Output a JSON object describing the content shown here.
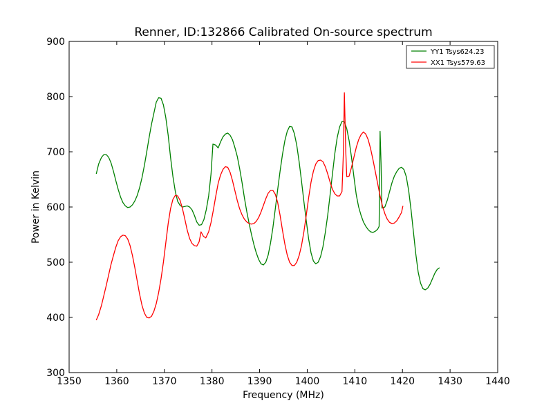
{
  "chart_data": {
    "type": "line",
    "title": "Renner, ID:132866 Calibrated On-source spectrum",
    "xlabel": "Frequency (MHz)",
    "ylabel": "Power in Kelvin",
    "xlim": [
      1350,
      1440
    ],
    "ylim": [
      300,
      900
    ],
    "xticks": [
      1350,
      1360,
      1370,
      1380,
      1390,
      1400,
      1410,
      1420,
      1430,
      1440
    ],
    "yticks": [
      300,
      400,
      500,
      600,
      700,
      800,
      900
    ],
    "grid": false,
    "legend_position": "top-right",
    "series": [
      {
        "name": "YY1 Tsys624.23",
        "color": "#008000",
        "points": [
          [
            1355.7,
            660
          ],
          [
            1356.2,
            678
          ],
          [
            1356.8,
            690
          ],
          [
            1357.3,
            695
          ],
          [
            1357.8,
            695
          ],
          [
            1358.3,
            690
          ],
          [
            1358.8,
            680
          ],
          [
            1359.3,
            665
          ],
          [
            1359.8,
            648
          ],
          [
            1360.3,
            632
          ],
          [
            1360.8,
            618
          ],
          [
            1361.3,
            608
          ],
          [
            1361.8,
            602
          ],
          [
            1362.3,
            599
          ],
          [
            1362.8,
            600
          ],
          [
            1363.3,
            604
          ],
          [
            1363.8,
            611
          ],
          [
            1364.3,
            621
          ],
          [
            1364.8,
            635
          ],
          [
            1365.3,
            653
          ],
          [
            1365.8,
            675
          ],
          [
            1366.3,
            700
          ],
          [
            1366.8,
            726
          ],
          [
            1367.3,
            750
          ],
          [
            1367.8,
            770
          ],
          [
            1368.3,
            790
          ],
          [
            1368.8,
            798
          ],
          [
            1369.3,
            797
          ],
          [
            1369.8,
            785
          ],
          [
            1370.3,
            762
          ],
          [
            1370.8,
            730
          ],
          [
            1371.3,
            690
          ],
          [
            1371.8,
            655
          ],
          [
            1372.3,
            628
          ],
          [
            1372.8,
            610
          ],
          [
            1373.3,
            603
          ],
          [
            1373.8,
            600
          ],
          [
            1374.3,
            601
          ],
          [
            1374.8,
            602
          ],
          [
            1375.3,
            600
          ],
          [
            1375.8,
            595
          ],
          [
            1376.3,
            585
          ],
          [
            1376.8,
            573
          ],
          [
            1377.3,
            567
          ],
          [
            1377.8,
            568
          ],
          [
            1378.3,
            577
          ],
          [
            1378.8,
            595
          ],
          [
            1379.3,
            620
          ],
          [
            1379.8,
            660
          ],
          [
            1380.2,
            714
          ],
          [
            1380.8,
            712
          ],
          [
            1381.3,
            707
          ],
          [
            1381.8,
            718
          ],
          [
            1382.3,
            727
          ],
          [
            1382.8,
            732
          ],
          [
            1383.3,
            734
          ],
          [
            1383.8,
            730
          ],
          [
            1384.3,
            722
          ],
          [
            1384.8,
            708
          ],
          [
            1385.3,
            692
          ],
          [
            1385.8,
            670
          ],
          [
            1386.3,
            645
          ],
          [
            1386.8,
            617
          ],
          [
            1387.3,
            592
          ],
          [
            1387.8,
            570
          ],
          [
            1388.3,
            550
          ],
          [
            1388.8,
            532
          ],
          [
            1389.3,
            517
          ],
          [
            1389.8,
            505
          ],
          [
            1390.3,
            497
          ],
          [
            1390.8,
            495
          ],
          [
            1391.3,
            500
          ],
          [
            1391.8,
            513
          ],
          [
            1392.3,
            535
          ],
          [
            1392.8,
            563
          ],
          [
            1393.3,
            597
          ],
          [
            1393.8,
            632
          ],
          [
            1394.3,
            665
          ],
          [
            1394.8,
            695
          ],
          [
            1395.3,
            720
          ],
          [
            1395.8,
            737
          ],
          [
            1396.3,
            746
          ],
          [
            1396.8,
            745
          ],
          [
            1397.3,
            733
          ],
          [
            1397.8,
            712
          ],
          [
            1398.3,
            682
          ],
          [
            1398.8,
            647
          ],
          [
            1399.3,
            610
          ],
          [
            1399.8,
            575
          ],
          [
            1400.3,
            542
          ],
          [
            1400.8,
            517
          ],
          [
            1401.3,
            502
          ],
          [
            1401.8,
            497
          ],
          [
            1402.3,
            500
          ],
          [
            1402.8,
            510
          ],
          [
            1403.3,
            528
          ],
          [
            1403.8,
            554
          ],
          [
            1404.3,
            585
          ],
          [
            1404.8,
            622
          ],
          [
            1405.3,
            660
          ],
          [
            1405.8,
            697
          ],
          [
            1406.3,
            726
          ],
          [
            1406.8,
            745
          ],
          [
            1407.3,
            755
          ],
          [
            1407.8,
            754
          ],
          [
            1408.3,
            742
          ],
          [
            1408.8,
            720
          ],
          [
            1409.3,
            690
          ],
          [
            1409.8,
            655
          ],
          [
            1410.3,
            622
          ],
          [
            1410.8,
            600
          ],
          [
            1411.3,
            585
          ],
          [
            1411.8,
            573
          ],
          [
            1412.3,
            565
          ],
          [
            1412.8,
            559
          ],
          [
            1413.3,
            555
          ],
          [
            1413.8,
            554
          ],
          [
            1414.3,
            556
          ],
          [
            1414.8,
            560
          ],
          [
            1415.1,
            565
          ],
          [
            1415.2,
            650
          ],
          [
            1415.3,
            737
          ],
          [
            1415.5,
            680
          ],
          [
            1415.7,
            598
          ],
          [
            1416.3,
            600
          ],
          [
            1416.8,
            612
          ],
          [
            1417.3,
            628
          ],
          [
            1417.8,
            644
          ],
          [
            1418.3,
            656
          ],
          [
            1418.8,
            664
          ],
          [
            1419.3,
            670
          ],
          [
            1419.8,
            672
          ],
          [
            1420.3,
            668
          ],
          [
            1420.8,
            655
          ],
          [
            1421.3,
            630
          ],
          [
            1421.8,
            595
          ],
          [
            1422.3,
            555
          ],
          [
            1422.8,
            515
          ],
          [
            1423.3,
            482
          ],
          [
            1423.8,
            462
          ],
          [
            1424.3,
            452
          ],
          [
            1424.8,
            450
          ],
          [
            1425.3,
            453
          ],
          [
            1425.8,
            460
          ],
          [
            1426.3,
            470
          ],
          [
            1426.8,
            480
          ],
          [
            1427.3,
            487
          ],
          [
            1427.8,
            490
          ]
        ]
      },
      {
        "name": "XX1 Tsys579.63",
        "color": "#ff0000",
        "points": [
          [
            1355.7,
            395
          ],
          [
            1356.2,
            405
          ],
          [
            1356.8,
            422
          ],
          [
            1357.3,
            440
          ],
          [
            1357.8,
            458
          ],
          [
            1358.3,
            477
          ],
          [
            1358.8,
            496
          ],
          [
            1359.3,
            512
          ],
          [
            1359.8,
            527
          ],
          [
            1360.3,
            539
          ],
          [
            1360.8,
            546
          ],
          [
            1361.3,
            549
          ],
          [
            1361.8,
            548
          ],
          [
            1362.3,
            542
          ],
          [
            1362.8,
            530
          ],
          [
            1363.3,
            512
          ],
          [
            1363.8,
            490
          ],
          [
            1364.3,
            466
          ],
          [
            1364.8,
            442
          ],
          [
            1365.3,
            422
          ],
          [
            1365.8,
            408
          ],
          [
            1366.3,
            400
          ],
          [
            1366.8,
            399
          ],
          [
            1367.3,
            402
          ],
          [
            1367.8,
            411
          ],
          [
            1368.3,
            425
          ],
          [
            1368.8,
            445
          ],
          [
            1369.3,
            470
          ],
          [
            1369.8,
            500
          ],
          [
            1370.3,
            535
          ],
          [
            1370.8,
            570
          ],
          [
            1371.3,
            597
          ],
          [
            1371.8,
            614
          ],
          [
            1372.3,
            621
          ],
          [
            1372.8,
            620
          ],
          [
            1373.3,
            612
          ],
          [
            1373.8,
            597
          ],
          [
            1374.3,
            578
          ],
          [
            1374.8,
            558
          ],
          [
            1375.3,
            543
          ],
          [
            1375.8,
            534
          ],
          [
            1376.3,
            530
          ],
          [
            1376.8,
            529
          ],
          [
            1377.3,
            537
          ],
          [
            1377.7,
            555
          ],
          [
            1378.2,
            547
          ],
          [
            1378.7,
            544
          ],
          [
            1379.3,
            555
          ],
          [
            1379.8,
            572
          ],
          [
            1380.3,
            595
          ],
          [
            1380.8,
            620
          ],
          [
            1381.3,
            643
          ],
          [
            1381.8,
            658
          ],
          [
            1382.3,
            668
          ],
          [
            1382.8,
            673
          ],
          [
            1383.3,
            672
          ],
          [
            1383.8,
            663
          ],
          [
            1384.3,
            648
          ],
          [
            1384.8,
            630
          ],
          [
            1385.3,
            612
          ],
          [
            1385.8,
            597
          ],
          [
            1386.3,
            586
          ],
          [
            1386.8,
            578
          ],
          [
            1387.3,
            573
          ],
          [
            1387.8,
            570
          ],
          [
            1388.3,
            569
          ],
          [
            1388.8,
            570
          ],
          [
            1389.3,
            574
          ],
          [
            1389.8,
            581
          ],
          [
            1390.3,
            591
          ],
          [
            1390.8,
            603
          ],
          [
            1391.3,
            615
          ],
          [
            1391.8,
            625
          ],
          [
            1392.3,
            630
          ],
          [
            1392.8,
            630
          ],
          [
            1393.3,
            623
          ],
          [
            1393.8,
            608
          ],
          [
            1394.3,
            585
          ],
          [
            1394.8,
            558
          ],
          [
            1395.3,
            533
          ],
          [
            1395.8,
            513
          ],
          [
            1396.3,
            500
          ],
          [
            1396.8,
            494
          ],
          [
            1397.3,
            494
          ],
          [
            1397.8,
            500
          ],
          [
            1398.3,
            512
          ],
          [
            1398.8,
            530
          ],
          [
            1399.3,
            555
          ],
          [
            1399.8,
            585
          ],
          [
            1400.3,
            617
          ],
          [
            1400.8,
            645
          ],
          [
            1401.3,
            665
          ],
          [
            1401.8,
            678
          ],
          [
            1402.3,
            684
          ],
          [
            1402.8,
            685
          ],
          [
            1403.3,
            682
          ],
          [
            1403.8,
            673
          ],
          [
            1404.3,
            660
          ],
          [
            1404.8,
            645
          ],
          [
            1405.3,
            632
          ],
          [
            1405.8,
            624
          ],
          [
            1406.3,
            620
          ],
          [
            1406.8,
            620
          ],
          [
            1407.3,
            628
          ],
          [
            1407.6,
            700
          ],
          [
            1407.8,
            807
          ],
          [
            1408.1,
            700
          ],
          [
            1408.3,
            655
          ],
          [
            1408.8,
            656
          ],
          [
            1409.3,
            672
          ],
          [
            1409.8,
            690
          ],
          [
            1410.3,
            708
          ],
          [
            1410.8,
            722
          ],
          [
            1411.3,
            731
          ],
          [
            1411.8,
            736
          ],
          [
            1412.3,
            732
          ],
          [
            1412.8,
            722
          ],
          [
            1413.3,
            706
          ],
          [
            1413.8,
            686
          ],
          [
            1414.3,
            664
          ],
          [
            1414.8,
            642
          ],
          [
            1415.3,
            620
          ],
          [
            1415.8,
            602
          ],
          [
            1416.3,
            588
          ],
          [
            1416.8,
            578
          ],
          [
            1417.3,
            572
          ],
          [
            1417.8,
            570
          ],
          [
            1418.3,
            571
          ],
          [
            1418.8,
            575
          ],
          [
            1419.3,
            582
          ],
          [
            1419.8,
            590
          ],
          [
            1420.1,
            602
          ]
        ]
      }
    ]
  }
}
